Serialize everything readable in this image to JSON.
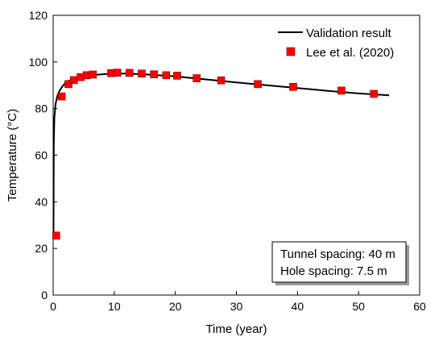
{
  "chart_data": {
    "type": "line",
    "xlabel": "Time (year)",
    "ylabel": "Temperature (°C)",
    "xlim": [
      0,
      60
    ],
    "ylim": [
      0,
      120
    ],
    "xticks": [
      0,
      10,
      20,
      30,
      40,
      50,
      60
    ],
    "yticks": [
      0,
      20,
      40,
      60,
      80,
      100,
      120
    ],
    "grid": false,
    "legend_position": "top-right",
    "series": [
      {
        "name": "Validation result",
        "kind": "line",
        "color": "#000000",
        "x": [
          0.05,
          0.1,
          0.2,
          0.4,
          0.7,
          1,
          1.5,
          2,
          3,
          4,
          5,
          6,
          7,
          8,
          9,
          10,
          11,
          12,
          13,
          15,
          17,
          20,
          25,
          30,
          35,
          40,
          45,
          50,
          55
        ],
        "y": [
          25,
          65,
          76,
          82,
          85.5,
          87.5,
          89.5,
          91,
          92.5,
          93.3,
          93.8,
          94.2,
          94.5,
          94.7,
          94.9,
          95.0,
          95.0,
          95.0,
          94.9,
          94.7,
          94.3,
          93.8,
          92.5,
          91.2,
          90.0,
          88.8,
          87.6,
          86.5,
          85.7
        ]
      },
      {
        "name": "Lee et al. (2020)",
        "kind": "scatter",
        "color": "#ff0000",
        "x": [
          0.5,
          1.4,
          2.5,
          3.4,
          4.5,
          5.5,
          6.5,
          9.5,
          10.5,
          12.5,
          14.5,
          16.5,
          18.5,
          20.3,
          23.5,
          27.5,
          33.5,
          39.3,
          47.2,
          52.5
        ],
        "y": [
          25.5,
          85.2,
          90.5,
          92.2,
          93.5,
          94.3,
          94.6,
          95.2,
          95.4,
          95.3,
          95.0,
          94.7,
          94.3,
          94.1,
          93.0,
          92.1,
          90.5,
          89.3,
          87.7,
          86.3
        ]
      }
    ]
  },
  "annotation": {
    "lines": [
      "Tunnel spacing: 40 m",
      "Hole spacing: 7.5 m"
    ]
  }
}
